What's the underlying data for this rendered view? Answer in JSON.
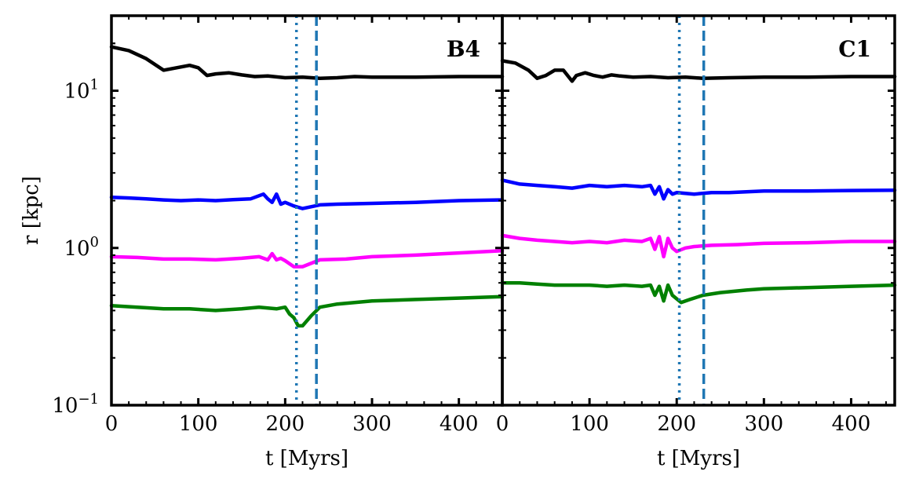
{
  "chart_data": [
    {
      "type": "line",
      "panel_label": "B4",
      "xlabel": "t [Myrs]",
      "ylabel": "r [kpc]",
      "yscale": "log",
      "xlim": [
        0,
        450
      ],
      "ylim": [
        0.1,
        30
      ],
      "x_ticks": [
        "0",
        "100",
        "200",
        "300",
        "400"
      ],
      "y_ticks": [
        {
          "base": "10",
          "exp": "1"
        },
        {
          "base": "10",
          "exp": "0"
        },
        {
          "base": "10",
          "exp": "−1"
        }
      ],
      "vlines": [
        {
          "x": 213,
          "style": "dotted",
          "color": "#1f77b4"
        },
        {
          "x": 236,
          "style": "dashed",
          "color": "#1f77b4"
        }
      ],
      "series": [
        {
          "name": "black",
          "color": "#000000",
          "x": [
            0,
            20,
            40,
            60,
            75,
            90,
            100,
            110,
            120,
            135,
            150,
            165,
            180,
            200,
            220,
            240,
            260,
            280,
            300,
            350,
            400,
            450
          ],
          "y": [
            19,
            18,
            16,
            13.5,
            14,
            14.5,
            14,
            12.5,
            12.8,
            13,
            12.6,
            12.3,
            12.4,
            12.1,
            12.2,
            12.0,
            12.1,
            12.3,
            12.2,
            12.2,
            12.3,
            12.3
          ]
        },
        {
          "name": "blue",
          "color": "#0000ff",
          "x": [
            0,
            20,
            40,
            60,
            80,
            100,
            120,
            140,
            160,
            175,
            180,
            185,
            190,
            195,
            200,
            210,
            220,
            240,
            260,
            300,
            350,
            400,
            450
          ],
          "y": [
            2.1,
            2.08,
            2.05,
            2.02,
            2.0,
            2.02,
            2.0,
            2.03,
            2.05,
            2.2,
            2.05,
            1.95,
            2.2,
            1.9,
            1.95,
            1.85,
            1.78,
            1.88,
            1.9,
            1.92,
            1.95,
            2.0,
            2.02
          ]
        },
        {
          "name": "magenta",
          "color": "#ff00ff",
          "x": [
            0,
            30,
            60,
            90,
            120,
            150,
            170,
            180,
            185,
            190,
            195,
            200,
            210,
            220,
            240,
            270,
            300,
            350,
            400,
            450
          ],
          "y": [
            0.88,
            0.87,
            0.85,
            0.85,
            0.84,
            0.86,
            0.88,
            0.84,
            0.92,
            0.84,
            0.86,
            0.83,
            0.76,
            0.76,
            0.84,
            0.85,
            0.88,
            0.9,
            0.93,
            0.96
          ]
        },
        {
          "name": "green",
          "color": "#008000",
          "x": [
            0,
            30,
            60,
            90,
            120,
            150,
            170,
            190,
            200,
            205,
            210,
            215,
            220,
            230,
            240,
            260,
            300,
            350,
            400,
            450
          ],
          "y": [
            0.43,
            0.42,
            0.41,
            0.41,
            0.4,
            0.41,
            0.42,
            0.41,
            0.42,
            0.38,
            0.36,
            0.32,
            0.32,
            0.37,
            0.42,
            0.44,
            0.46,
            0.47,
            0.48,
            0.49
          ]
        }
      ]
    },
    {
      "type": "line",
      "panel_label": "C1",
      "xlabel": "t [Myrs]",
      "ylabel": "",
      "yscale": "log",
      "xlim": [
        0,
        450
      ],
      "ylim": [
        0.1,
        30
      ],
      "x_ticks": [
        "0",
        "100",
        "200",
        "300",
        "400"
      ],
      "vlines": [
        {
          "x": 203,
          "style": "dotted",
          "color": "#1f77b4"
        },
        {
          "x": 231,
          "style": "dashed",
          "color": "#1f77b4"
        }
      ],
      "series": [
        {
          "name": "black",
          "color": "#000000",
          "x": [
            0,
            15,
            30,
            40,
            50,
            60,
            70,
            80,
            85,
            95,
            105,
            115,
            125,
            135,
            150,
            170,
            190,
            210,
            230,
            260,
            300,
            350,
            400,
            450
          ],
          "y": [
            15.5,
            15,
            13.5,
            12,
            12.5,
            13.5,
            13.5,
            11.5,
            12.5,
            13,
            12.5,
            12.2,
            12.6,
            12.4,
            12.2,
            12.3,
            12.1,
            12.2,
            12.0,
            12.1,
            12.2,
            12.2,
            12.3,
            12.3
          ]
        },
        {
          "name": "blue",
          "color": "#0000ff",
          "x": [
            0,
            20,
            40,
            60,
            80,
            100,
            120,
            140,
            160,
            170,
            175,
            180,
            185,
            190,
            195,
            200,
            220,
            240,
            260,
            300,
            350,
            400,
            450
          ],
          "y": [
            2.7,
            2.55,
            2.5,
            2.45,
            2.4,
            2.5,
            2.45,
            2.5,
            2.45,
            2.5,
            2.2,
            2.45,
            2.05,
            2.35,
            2.2,
            2.25,
            2.2,
            2.25,
            2.25,
            2.3,
            2.3,
            2.32,
            2.33
          ]
        },
        {
          "name": "magenta",
          "color": "#ff00ff",
          "x": [
            0,
            20,
            40,
            60,
            80,
            100,
            120,
            140,
            160,
            170,
            175,
            180,
            185,
            190,
            195,
            200,
            210,
            220,
            240,
            270,
            300,
            350,
            400,
            450
          ],
          "y": [
            1.2,
            1.15,
            1.12,
            1.1,
            1.08,
            1.1,
            1.08,
            1.12,
            1.1,
            1.15,
            0.98,
            1.18,
            0.88,
            1.15,
            1.0,
            0.95,
            1.0,
            1.02,
            1.04,
            1.05,
            1.07,
            1.08,
            1.1,
            1.1
          ]
        },
        {
          "name": "green",
          "color": "#008000",
          "x": [
            0,
            20,
            40,
            60,
            80,
            100,
            120,
            140,
            160,
            170,
            175,
            180,
            185,
            190,
            195,
            205,
            215,
            230,
            250,
            280,
            300,
            350,
            400,
            450
          ],
          "y": [
            0.6,
            0.6,
            0.59,
            0.58,
            0.58,
            0.58,
            0.57,
            0.58,
            0.57,
            0.58,
            0.5,
            0.57,
            0.46,
            0.58,
            0.5,
            0.45,
            0.47,
            0.5,
            0.52,
            0.54,
            0.55,
            0.56,
            0.57,
            0.58
          ]
        }
      ]
    }
  ]
}
